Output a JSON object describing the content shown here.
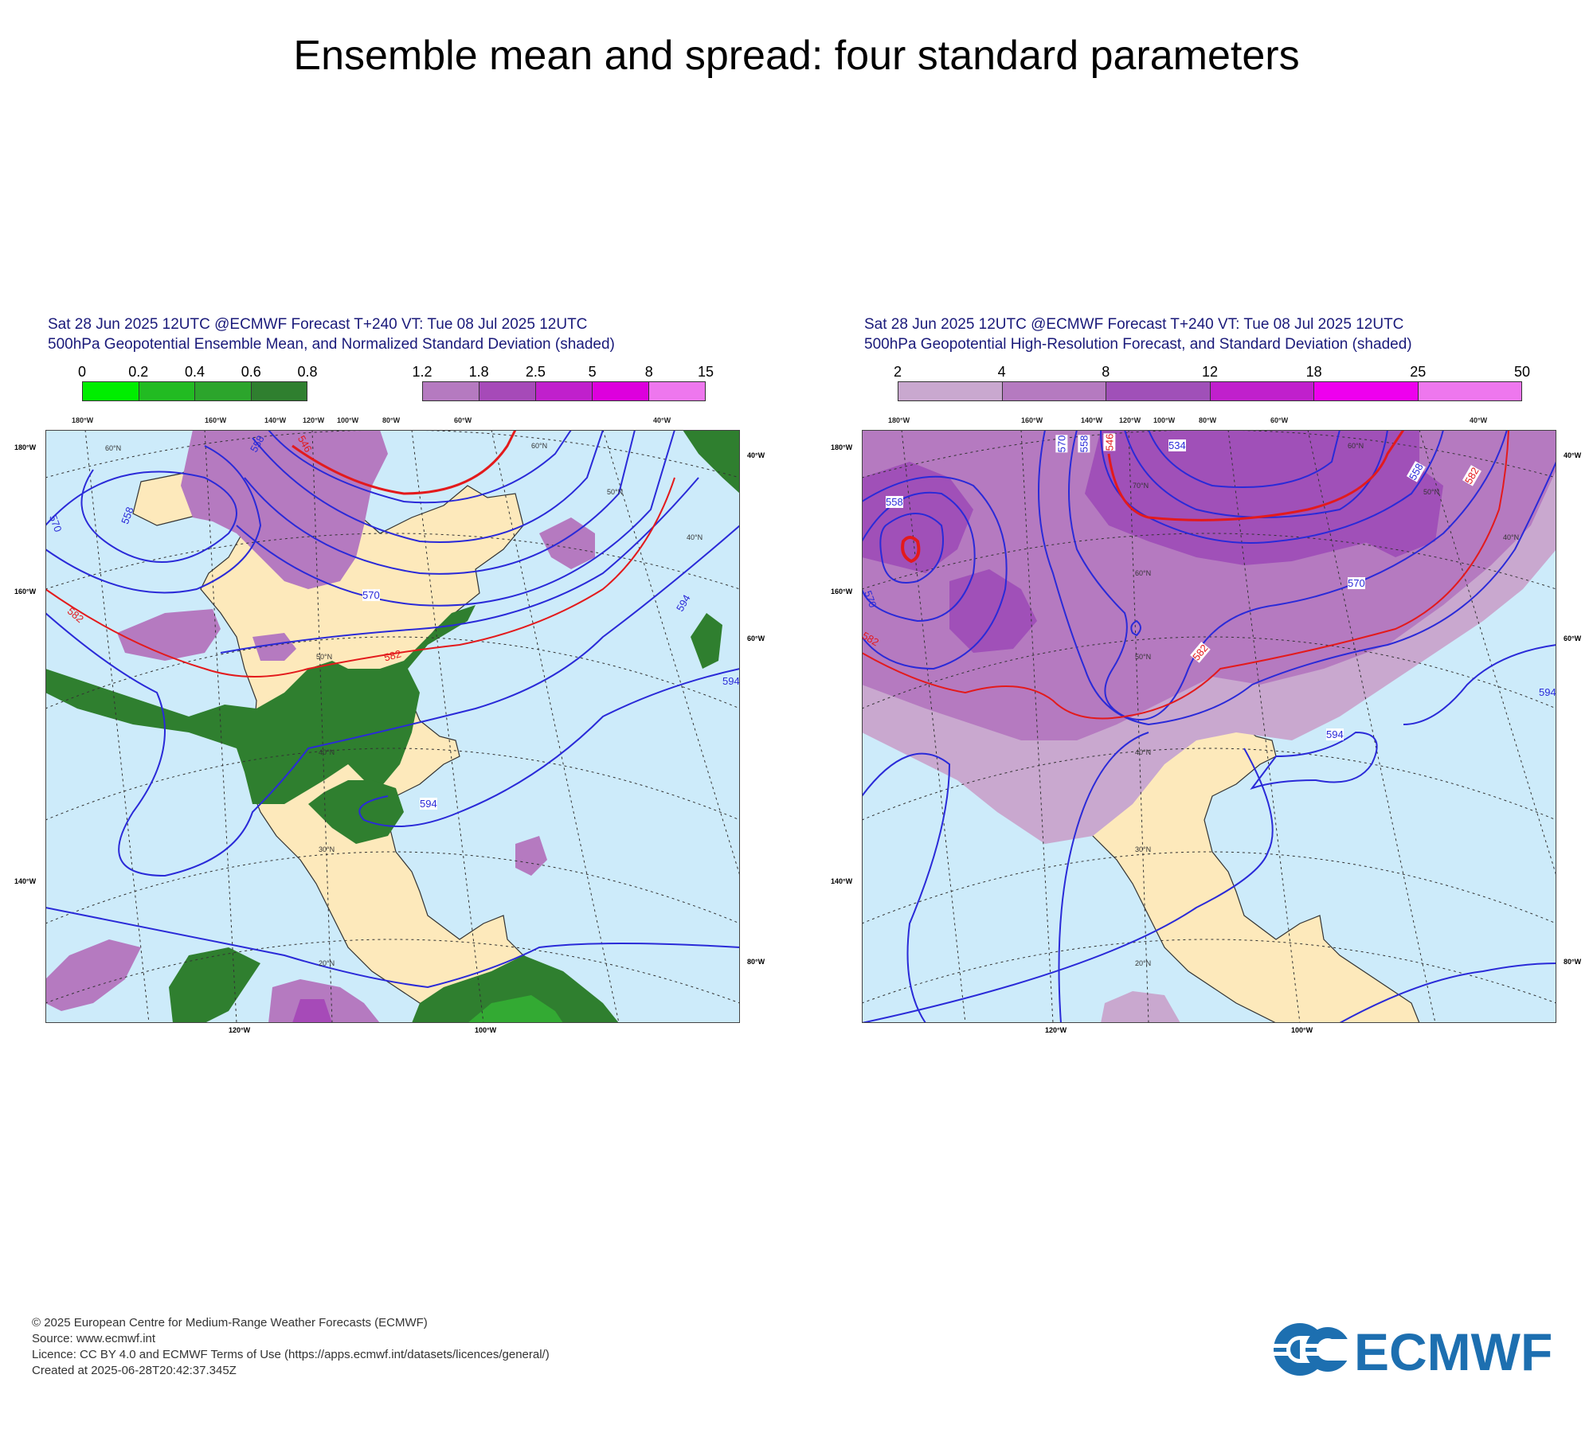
{
  "page_title": "Ensemble mean and spread: four standard parameters",
  "panels": [
    {
      "header_line1": "Sat 28 Jun 2025 12UTC @ECMWF Forecast T+240 VT: Tue 08 Jul 2025 12UTC",
      "header_line2": "500hPa Geopotential Ensemble Mean, and Normalized Standard Deviation (shaded)",
      "colorbar_a": {
        "labels": [
          "0",
          "0.2",
          "0.4",
          "0.6",
          "0.8"
        ],
        "colors": [
          "#00ee00",
          "#22bb22",
          "#2ca52c",
          "#2f7f2f"
        ]
      },
      "colorbar_b": {
        "labels": [
          "1.2",
          "1.8",
          "2.5",
          "5",
          "8",
          "15"
        ],
        "colors": [
          "#b57ac0",
          "#a64ab8",
          "#c020cc",
          "#dd00dd",
          "#ee77ee"
        ]
      },
      "contour_labels": [
        "570",
        "558",
        "546",
        "558",
        "570",
        "582",
        "582",
        "594",
        "594",
        "594"
      ],
      "lat_labels": [
        "60°N",
        "50°N",
        "40°N",
        "30°N",
        "20°N",
        "60°N",
        "50°N",
        "40°N"
      ],
      "lon_labels_top": [
        "180°W",
        "160°W",
        "140°W",
        "120°W",
        "100°W",
        "80°W",
        "60°W",
        "40°W"
      ],
      "lon_labels_left": [
        "180°W",
        "160°W",
        "140°W"
      ],
      "lon_labels_right": [
        "40°W",
        "60°W",
        "80°W"
      ],
      "lon_labels_bottom": [
        "120°W",
        "100°W"
      ]
    },
    {
      "header_line1": "Sat 28 Jun 2025 12UTC @ECMWF Forecast T+240 VT: Tue 08 Jul 2025 12UTC",
      "header_line2": "500hPa Geopotential High-Resolution Forecast, and Standard Deviation (shaded)",
      "colorbar": {
        "labels": [
          "2",
          "4",
          "8",
          "12",
          "18",
          "25",
          "50"
        ],
        "colors": [
          "#c9a8cf",
          "#b57ac0",
          "#a050b8",
          "#c020cc",
          "#ee00ee",
          "#ee77ee"
        ]
      },
      "contour_labels": [
        "558",
        "570",
        "570",
        "558",
        "546",
        "534",
        "558",
        "582",
        "570",
        "582",
        "582",
        "594",
        "594"
      ],
      "lat_labels": [
        "60°N",
        "50°N",
        "40°N",
        "30°N",
        "20°N",
        "70°N",
        "60°N",
        "50°N",
        "40°N"
      ],
      "lon_labels_top": [
        "180°W",
        "160°W",
        "140°W",
        "120°W",
        "100°W",
        "80°W",
        "60°W",
        "40°W"
      ],
      "lon_labels_left": [
        "180°W",
        "160°W",
        "140°W"
      ],
      "lon_labels_right": [
        "40°W",
        "60°W",
        "80°W"
      ],
      "lon_labels_bottom": [
        "120°W",
        "100°W"
      ]
    }
  ],
  "footer": {
    "line1": "© 2025 European Centre for Medium-Range Weather Forecasts (ECMWF)",
    "line2": "Source: www.ecmwf.int",
    "line3": "Licence: CC BY 4.0 and ECMWF Terms of Use (https://apps.ecmwf.int/datasets/licences/general/)",
    "line4": "Created at 2025-06-28T20:42:37.345Z"
  },
  "logo_text": "ECMWF",
  "colors": {
    "ocean": "#cdebfa",
    "land": "#fde9bb",
    "contour_blue": "#2a2ad8",
    "contour_red": "#e31a1c",
    "logo_blue": "#1d6fb0"
  }
}
